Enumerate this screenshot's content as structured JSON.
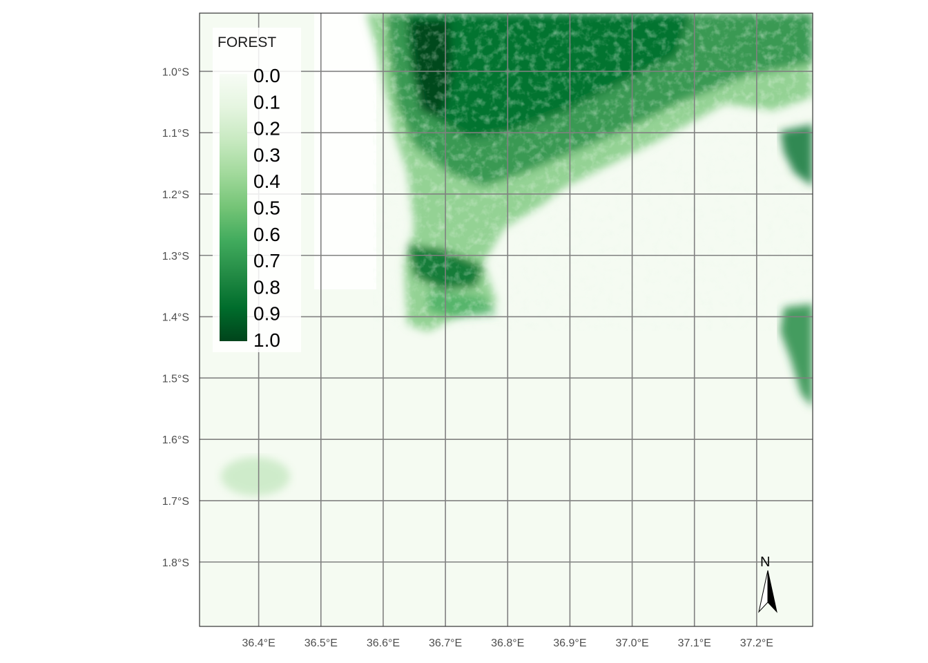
{
  "map": {
    "x_axis": {
      "ticks": [
        "36.4°E",
        "36.5°E",
        "36.6°E",
        "36.7°E",
        "36.8°E",
        "36.9°E",
        "37.0°E",
        "37.1°E",
        "37.2°E"
      ],
      "values": [
        36.4,
        36.5,
        36.6,
        36.7,
        36.8,
        36.9,
        37.0,
        37.1,
        37.2
      ],
      "range": [
        36.305,
        37.29
      ]
    },
    "y_axis": {
      "ticks": [
        "1.0°S",
        "1.1°S",
        "1.2°S",
        "1.3°S",
        "1.4°S",
        "1.5°S",
        "1.6°S",
        "1.7°S",
        "1.8°S"
      ],
      "values": [
        -1.0,
        -1.1,
        -1.2,
        -1.3,
        -1.4,
        -1.5,
        -1.6,
        -1.7,
        -1.8
      ],
      "range": [
        -1.905,
        -0.905
      ]
    },
    "graticule": true,
    "graticule_color": "#808080",
    "raster": {
      "variable": "FOREST",
      "palette": [
        "#f7fcf5",
        "#e5f5e0",
        "#c7e9c0",
        "#a1d99b",
        "#74c476",
        "#41ab5d",
        "#238b45",
        "#006d2c",
        "#00441b"
      ],
      "value_range": [
        0.0,
        1.0
      ],
      "dense_forest_extent": "north-central",
      "secondary_patch": "east edge near 1.4°S–1.5°S"
    }
  },
  "legend": {
    "title": "FOREST",
    "labels": [
      "0.0",
      "0.1",
      "0.2",
      "0.3",
      "0.4",
      "0.5",
      "0.6",
      "0.7",
      "0.8",
      "0.9",
      "1.0"
    ],
    "position": "top-left"
  },
  "north_arrow": {
    "label": "N",
    "position": "bottom-right"
  }
}
